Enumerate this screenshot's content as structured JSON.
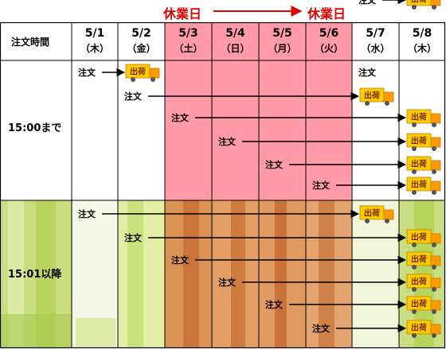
{
  "holiday_label": "休業日",
  "header": {
    "corner": "注文時間",
    "columns": [
      {
        "date": "5/1",
        "day": "（木）",
        "holiday": false
      },
      {
        "date": "5/2",
        "day": "（金）",
        "holiday": false
      },
      {
        "date": "5/3",
        "day": "（土）",
        "holiday": true
      },
      {
        "date": "5/4",
        "day": "（日）",
        "holiday": true
      },
      {
        "date": "5/5",
        "day": "（月）",
        "holiday": true
      },
      {
        "date": "5/6",
        "day": "（火）",
        "holiday": true
      },
      {
        "date": "5/7",
        "day": "（水）",
        "holiday": false
      },
      {
        "date": "5/8",
        "day": "（木）",
        "holiday": false
      }
    ]
  },
  "rows": [
    {
      "label": "15:00まで"
    },
    {
      "label": "15:01以降"
    }
  ],
  "order_label": "注文",
  "ship_label": "出荷",
  "colors": {
    "grid": "#000000",
    "holiday_fill": "#ff9aa6",
    "holiday_text": "#e00000",
    "truck_cab": "#ff9900",
    "truck_body": "#ffcc00",
    "ship_text": "#7a2c00",
    "row2_green": "#cfe08c",
    "row2_orange": "#d58a4a"
  },
  "flows": [
    {
      "section": 0,
      "order_col": 1,
      "ship_col": 2,
      "ship_date": "5/2"
    },
    {
      "section": 0,
      "order_col": 2,
      "ship_col": 7,
      "ship_date": "5/7"
    },
    {
      "section": 0,
      "order_col": 3,
      "ship_col": 8,
      "ship_date": "5/8"
    },
    {
      "section": 0,
      "order_col": 4,
      "ship_col": 8,
      "ship_date": "5/8"
    },
    {
      "section": 0,
      "order_col": 5,
      "ship_col": 8,
      "ship_date": "5/8"
    },
    {
      "section": 0,
      "order_col": 6,
      "ship_col": 8,
      "ship_date": "5/8"
    },
    {
      "section": 0,
      "order_col": 7,
      "ship_col": 8,
      "ship_date": "5/8"
    },
    {
      "section": 1,
      "order_col": 1,
      "ship_col": 7,
      "ship_date": "5/7"
    },
    {
      "section": 1,
      "order_col": 2,
      "ship_col": 8,
      "ship_date": "5/8"
    },
    {
      "section": 1,
      "order_col": 3,
      "ship_col": 8,
      "ship_date": "5/8"
    },
    {
      "section": 1,
      "order_col": 4,
      "ship_col": 8,
      "ship_date": "5/8"
    },
    {
      "section": 1,
      "order_col": 5,
      "ship_col": 8,
      "ship_date": "5/8"
    },
    {
      "section": 1,
      "order_col": 6,
      "ship_col": 8,
      "ship_date": "5/8"
    }
  ]
}
